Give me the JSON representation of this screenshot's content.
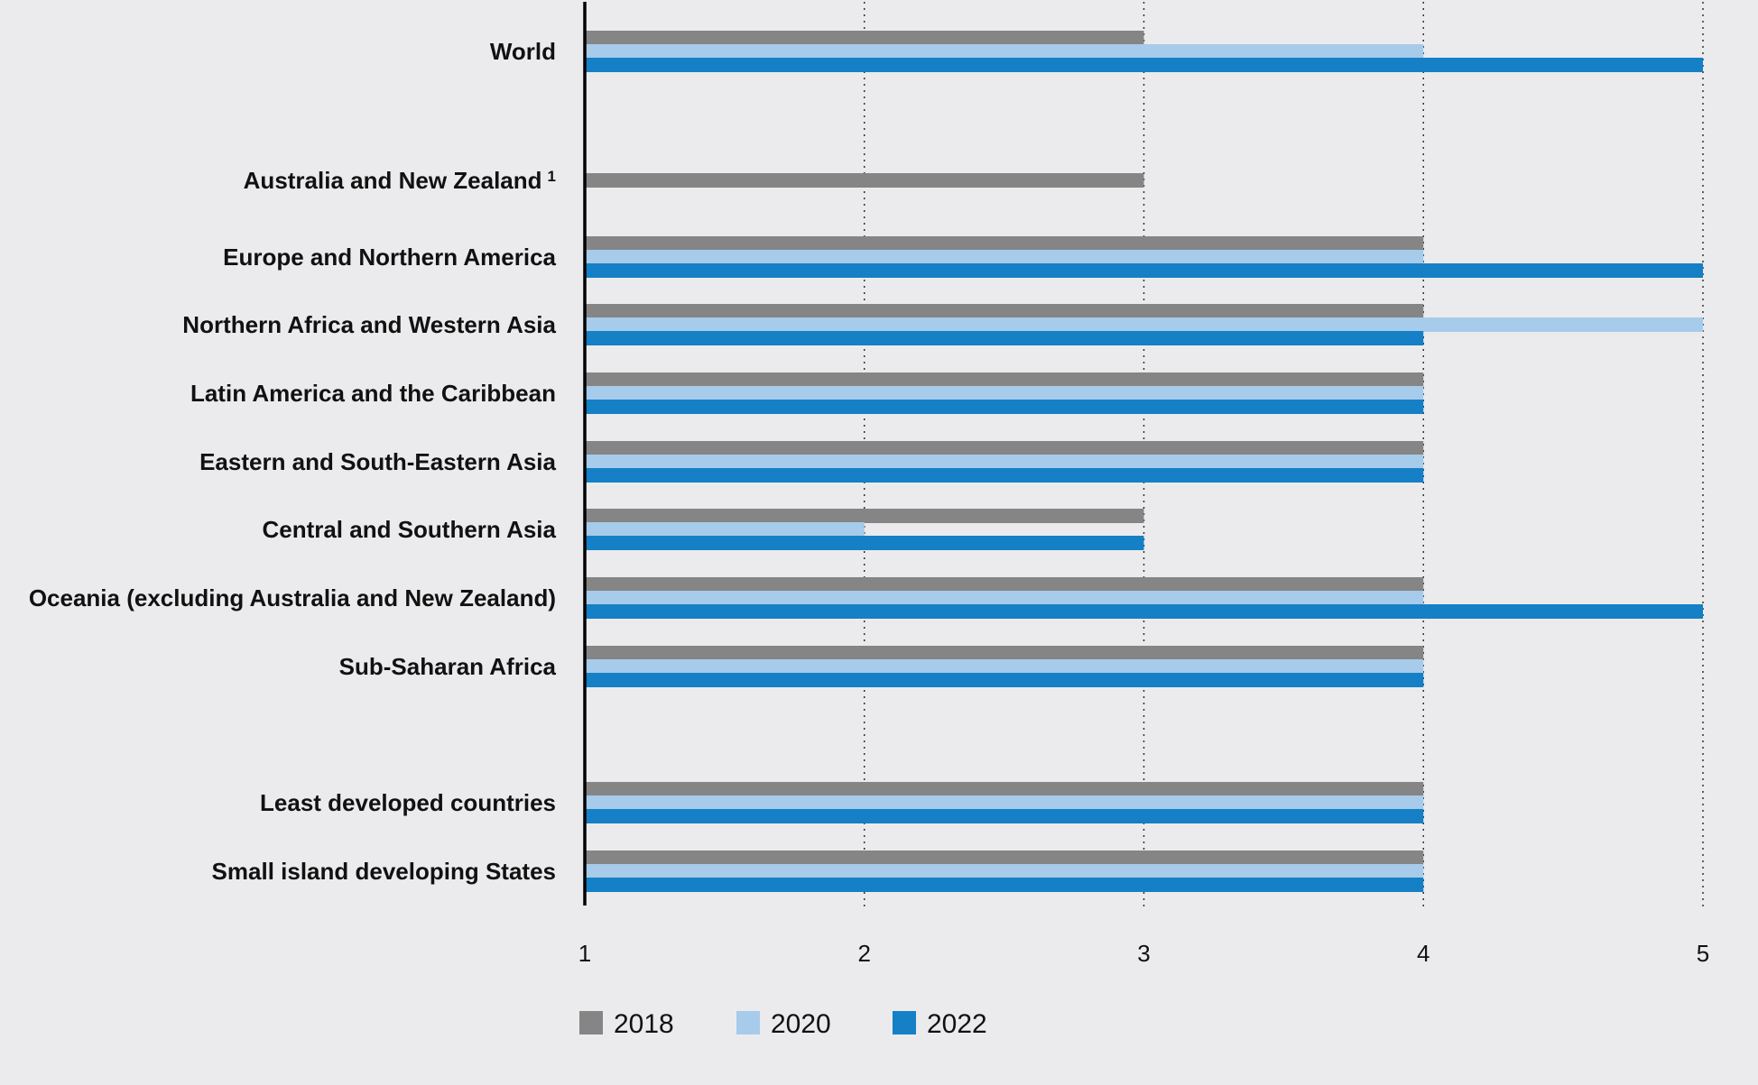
{
  "chart_data": {
    "type": "bar",
    "orientation": "horizontal",
    "categories": [
      {
        "label": "World",
        "sup": ""
      },
      {
        "label": "Australia and New Zealand",
        "sup": "1"
      },
      {
        "label": "Europe and Northern America",
        "sup": ""
      },
      {
        "label": "Northern Africa and Western Asia",
        "sup": ""
      },
      {
        "label": "Latin America and the Caribbean",
        "sup": ""
      },
      {
        "label": "Eastern and South-Eastern Asia",
        "sup": ""
      },
      {
        "label": "Central and Southern Asia",
        "sup": ""
      },
      {
        "label": "Oceania (excluding Australia and New Zealand)",
        "sup": ""
      },
      {
        "label": "Sub-Saharan Africa",
        "sup": ""
      },
      {
        "label": "Least developed countries",
        "sup": ""
      },
      {
        "label": "Small island developing States",
        "sup": ""
      }
    ],
    "series": [
      {
        "name": "2018",
        "color": "#858585",
        "values": [
          3,
          3,
          4,
          4,
          4,
          4,
          3,
          4,
          4,
          4,
          4
        ]
      },
      {
        "name": "2020",
        "color": "#a7cbea",
        "values": [
          4,
          null,
          4,
          5,
          4,
          4,
          2,
          4,
          4,
          4,
          4
        ]
      },
      {
        "name": "2022",
        "color": "#1580c6",
        "values": [
          5,
          null,
          5,
          4,
          4,
          4,
          3,
          5,
          4,
          4,
          4
        ]
      }
    ],
    "xlim": [
      1,
      5
    ],
    "xticks": [
      "1",
      "2",
      "3",
      "4",
      "5"
    ],
    "grid": "vertical dotted",
    "legend_position": "bottom-left",
    "title": "",
    "xlabel": "",
    "ylabel": ""
  }
}
